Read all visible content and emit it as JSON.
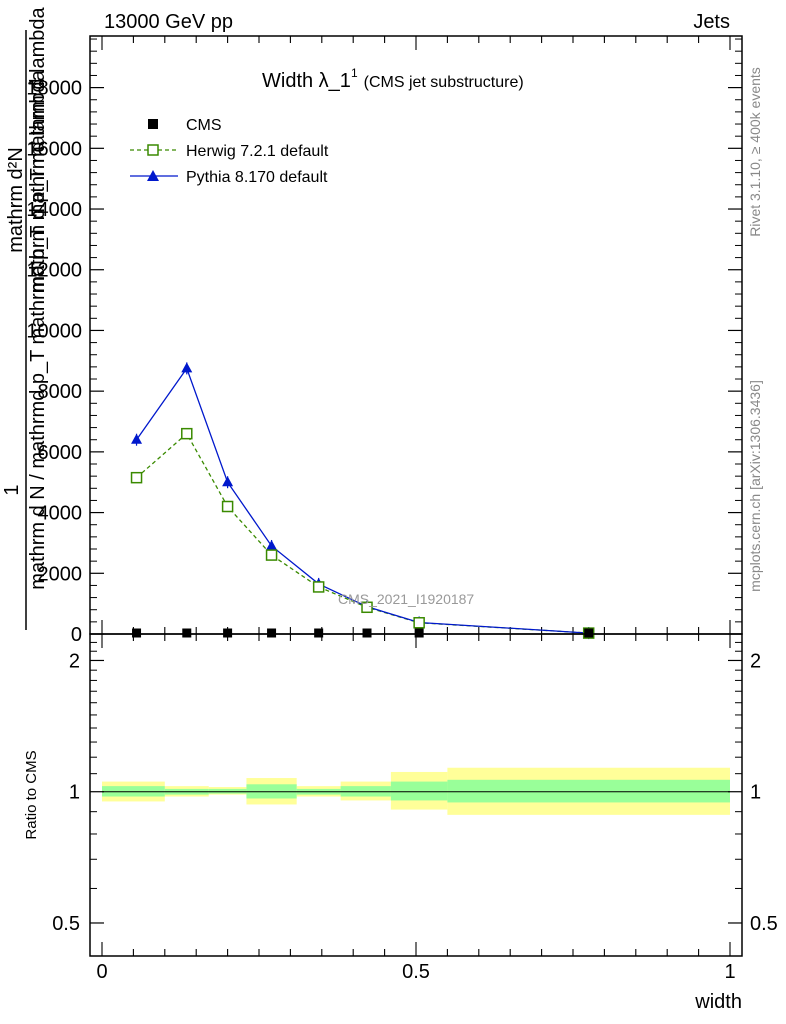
{
  "header": {
    "left": "13000 GeV pp",
    "right": "Jets"
  },
  "side_labels": {
    "rivet": "Rivet 3.1.10, ≥ 400k events",
    "mcplots": "mcplots.cern.ch [arXiv:1306.3436]"
  },
  "ylabel_main": {
    "frac_num": "1",
    "frac_den": "mathrm d N / mathrmd p_T mathrmd p_T mathrmd lambda",
    "num": "mathrm d²N",
    "den": "mathrm d p_T mathrm d lambda"
  },
  "chart_data": [
    {
      "type": "line",
      "title": "Width λ_1¹ (CMS jet substructure)",
      "title_main": "Width λ_1",
      "title_sup": "1",
      "title_sub": "(CMS jet substructure)",
      "watermark": "CMS_2021_I1920187",
      "xlim": [
        0,
        1
      ],
      "ylim": [
        0,
        19700
      ],
      "yticks": [
        0,
        2000,
        4000,
        6000,
        8000,
        10000,
        12000,
        14000,
        16000,
        18000
      ],
      "ytick_labels": [
        "0",
        "2000",
        "4000",
        "6000",
        "8000",
        "10000",
        "12000",
        "14000",
        "16000",
        "18000"
      ],
      "legend": [
        {
          "name": "CMS",
          "color": "#000000",
          "marker": "square-filled"
        },
        {
          "name": "Herwig 7.2.1 default",
          "color": "#3a8a00",
          "marker": "square-open",
          "line": "dashed"
        },
        {
          "name": "Pythia 8.170 default",
          "color": "#0018cc",
          "marker": "triangle",
          "line": "solid"
        }
      ],
      "series": [
        {
          "name": "CMS",
          "x": [
            0.055,
            0.135,
            0.2,
            0.27,
            0.345,
            0.422,
            0.505,
            0.775
          ],
          "y": [
            5,
            4,
            3,
            2,
            2,
            1,
            1,
            0
          ]
        },
        {
          "name": "Herwig 7.2.1 default",
          "x": [
            0.055,
            0.135,
            0.2,
            0.27,
            0.345,
            0.422,
            0.505,
            0.775
          ],
          "y": [
            5150,
            6600,
            4200,
            2600,
            1550,
            880,
            370,
            30
          ]
        },
        {
          "name": "Pythia 8.170 default",
          "x": [
            0.055,
            0.135,
            0.2,
            0.27,
            0.345,
            0.422,
            0.505,
            0.775
          ],
          "y": [
            6400,
            8750,
            5000,
            2900,
            1650,
            900,
            380,
            30
          ]
        }
      ]
    },
    {
      "type": "area",
      "ylabel": "Ratio to CMS",
      "xlabel": "width",
      "xlim": [
        0,
        1
      ],
      "ylim": [
        0.42,
        2.3
      ],
      "yscale": "log",
      "yticks": [
        0.5,
        1,
        2
      ],
      "ytick_labels": [
        "0.5",
        "1",
        "2"
      ],
      "xticks": [
        0,
        0.5,
        1
      ],
      "xtick_labels": [
        "0",
        "0.5",
        "1"
      ],
      "reference_line": 1,
      "bands": {
        "x_edges": [
          0,
          0.1,
          0.17,
          0.23,
          0.31,
          0.38,
          0.46,
          0.55,
          1.0
        ],
        "yellow_low": [
          0.95,
          0.975,
          0.985,
          0.935,
          0.975,
          0.955,
          0.91,
          0.885
        ],
        "yellow_high": [
          1.055,
          1.03,
          1.025,
          1.075,
          1.03,
          1.055,
          1.11,
          1.135
        ],
        "green_low": [
          0.975,
          0.985,
          0.99,
          0.965,
          0.985,
          0.975,
          0.955,
          0.945
        ],
        "green_high": [
          1.03,
          1.015,
          1.015,
          1.04,
          1.015,
          1.03,
          1.055,
          1.065
        ]
      }
    }
  ]
}
